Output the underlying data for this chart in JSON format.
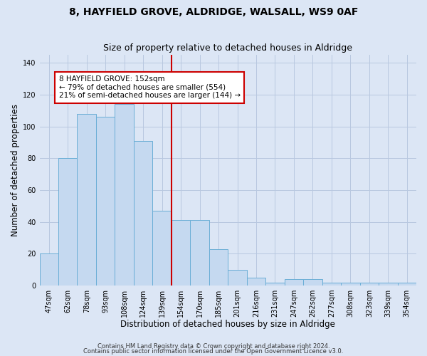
{
  "title": "8, HAYFIELD GROVE, ALDRIDGE, WALSALL, WS9 0AF",
  "subtitle": "Size of property relative to detached houses in Aldridge",
  "xlabel": "Distribution of detached houses by size in Aldridge",
  "ylabel": "Number of detached properties",
  "categories": [
    "47sqm",
    "62sqm",
    "78sqm",
    "93sqm",
    "108sqm",
    "124sqm",
    "139sqm",
    "154sqm",
    "170sqm",
    "185sqm",
    "201sqm",
    "216sqm",
    "231sqm",
    "247sqm",
    "262sqm",
    "277sqm",
    "308sqm",
    "323sqm",
    "339sqm",
    "354sqm"
  ],
  "values": [
    20,
    80,
    108,
    106,
    114,
    91,
    47,
    41,
    41,
    23,
    10,
    5,
    2,
    4,
    4,
    2,
    2,
    2,
    2,
    2
  ],
  "bar_color": "#c5d9f0",
  "bar_edge_color": "#6aaed6",
  "bar_width": 1.0,
  "vline_x": 6.5,
  "vline_color": "#cc0000",
  "annotation_text": "8 HAYFIELD GROVE: 152sqm\n← 79% of detached houses are smaller (554)\n21% of semi-detached houses are larger (144) →",
  "annotation_box_color": "#ffffff",
  "annotation_box_edge_color": "#cc0000",
  "ylim": [
    0,
    145
  ],
  "yticks": [
    0,
    20,
    40,
    60,
    80,
    100,
    120,
    140
  ],
  "footer1": "Contains HM Land Registry data © Crown copyright and database right 2024.",
  "footer2": "Contains public sector information licensed under the Open Government Licence v3.0.",
  "bg_color": "#dce6f5",
  "plot_bg_color": "#dce6f5",
  "grid_color": "#b8c8e0",
  "title_fontsize": 10,
  "subtitle_fontsize": 9,
  "label_fontsize": 8.5,
  "tick_fontsize": 7,
  "footer_fontsize": 6,
  "annotation_fontsize": 7.5
}
